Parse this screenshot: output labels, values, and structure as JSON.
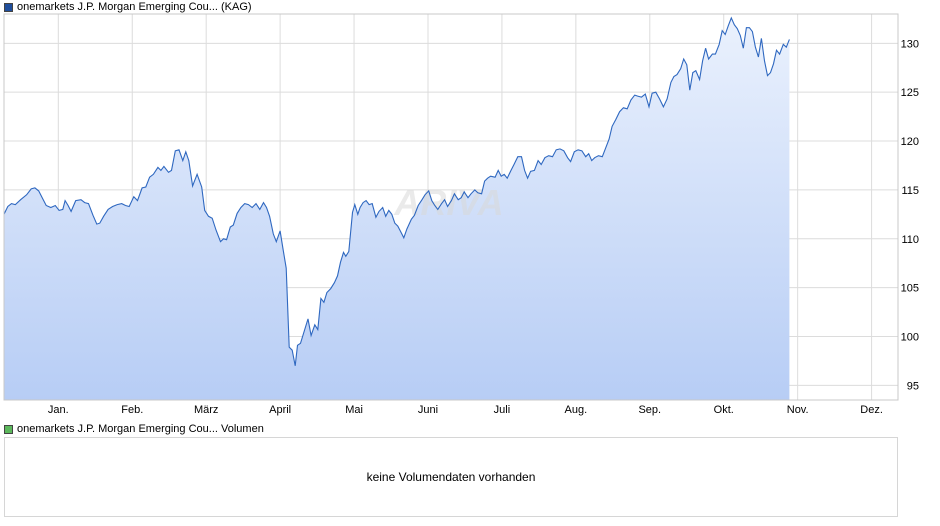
{
  "legend": {
    "main_label": "onemarkets J.P. Morgan Emerging Cou... (KAG)",
    "main_color": "#1f4e9c",
    "volume_label": "onemarkets J.P. Morgan Emerging Cou... Volumen",
    "volume_color": "#5cb85c"
  },
  "watermark": "ARIVA",
  "volume_panel": {
    "message": "keine Volumendaten vorhanden"
  },
  "chart_data": {
    "type": "area",
    "title": "",
    "xlabel": "",
    "ylabel": "",
    "line_color": "#2f68c0",
    "fill_top": "#eaf1fd",
    "fill_bottom": "#b7cdf5",
    "grid": true,
    "x_ticks": [
      {
        "label": "Jan.",
        "x": 0.72
      },
      {
        "label": "Feb.",
        "x": 1.7
      },
      {
        "label": "März",
        "x": 2.68
      },
      {
        "label": "April",
        "x": 3.66
      },
      {
        "label": "Mai",
        "x": 4.64
      },
      {
        "label": "Juni",
        "x": 5.62
      },
      {
        "label": "Juli",
        "x": 6.6
      },
      {
        "label": "Aug.",
        "x": 7.58
      },
      {
        "label": "Sep.",
        "x": 8.56
      },
      {
        "label": "Okt.",
        "x": 9.54
      },
      {
        "label": "Nov.",
        "x": 10.52
      },
      {
        "label": "Dez.",
        "x": 11.5
      }
    ],
    "xlim": [
      0,
      11.85
    ],
    "y_ticks": [
      95,
      100,
      105,
      110,
      115,
      120,
      125,
      130
    ],
    "ylim": [
      93.5,
      133
    ],
    "series": [
      {
        "values": [
          [
            0.0,
            112.5
          ],
          [
            0.05,
            113.3
          ],
          [
            0.1,
            113.6
          ],
          [
            0.15,
            113.5
          ],
          [
            0.22,
            114.0
          ],
          [
            0.3,
            114.5
          ],
          [
            0.36,
            115.1
          ],
          [
            0.41,
            115.2
          ],
          [
            0.46,
            114.9
          ],
          [
            0.5,
            114.3
          ],
          [
            0.56,
            113.4
          ],
          [
            0.62,
            113.2
          ],
          [
            0.68,
            113.4
          ],
          [
            0.73,
            112.9
          ],
          [
            0.78,
            113.0
          ],
          [
            0.81,
            113.9
          ],
          [
            0.85,
            113.4
          ],
          [
            0.89,
            112.8
          ],
          [
            0.95,
            113.9
          ],
          [
            1.02,
            114.0
          ],
          [
            1.07,
            113.7
          ],
          [
            1.12,
            113.6
          ],
          [
            1.18,
            112.4
          ],
          [
            1.23,
            111.5
          ],
          [
            1.27,
            111.6
          ],
          [
            1.32,
            112.3
          ],
          [
            1.38,
            113.0
          ],
          [
            1.44,
            113.3
          ],
          [
            1.5,
            113.5
          ],
          [
            1.56,
            113.6
          ],
          [
            1.61,
            113.4
          ],
          [
            1.66,
            113.3
          ],
          [
            1.72,
            114.3
          ],
          [
            1.77,
            113.9
          ],
          [
            1.83,
            115.2
          ],
          [
            1.88,
            115.3
          ],
          [
            1.93,
            116.3
          ],
          [
            1.98,
            116.6
          ],
          [
            2.04,
            117.3
          ],
          [
            2.08,
            117.0
          ],
          [
            2.12,
            117.4
          ],
          [
            2.18,
            116.8
          ],
          [
            2.22,
            117.0
          ],
          [
            2.27,
            119.0
          ],
          [
            2.32,
            119.1
          ],
          [
            2.37,
            118.0
          ],
          [
            2.41,
            118.9
          ],
          [
            2.45,
            118.0
          ],
          [
            2.5,
            115.4
          ],
          [
            2.56,
            116.6
          ],
          [
            2.62,
            115.3
          ],
          [
            2.66,
            112.9
          ],
          [
            2.71,
            112.3
          ],
          [
            2.76,
            112.1
          ],
          [
            2.81,
            110.9
          ],
          [
            2.87,
            109.7
          ],
          [
            2.91,
            110.0
          ],
          [
            2.95,
            109.9
          ],
          [
            3.0,
            111.2
          ],
          [
            3.04,
            111.4
          ],
          [
            3.09,
            112.6
          ],
          [
            3.14,
            113.2
          ],
          [
            3.19,
            113.6
          ],
          [
            3.24,
            113.5
          ],
          [
            3.29,
            113.2
          ],
          [
            3.34,
            113.6
          ],
          [
            3.39,
            113.0
          ],
          [
            3.44,
            113.7
          ],
          [
            3.48,
            113.2
          ],
          [
            3.52,
            112.3
          ],
          [
            3.57,
            110.5
          ],
          [
            3.61,
            109.7
          ],
          [
            3.66,
            110.8
          ],
          [
            3.7,
            108.9
          ],
          [
            3.74,
            107.0
          ],
          [
            3.78,
            98.9
          ],
          [
            3.82,
            98.6
          ],
          [
            3.86,
            97.0
          ],
          [
            3.89,
            99.1
          ],
          [
            3.93,
            99.3
          ],
          [
            3.97,
            100.3
          ],
          [
            4.03,
            101.8
          ],
          [
            4.07,
            100.1
          ],
          [
            4.12,
            101.2
          ],
          [
            4.16,
            100.7
          ],
          [
            4.2,
            103.9
          ],
          [
            4.24,
            103.5
          ],
          [
            4.28,
            104.5
          ],
          [
            4.33,
            104.9
          ],
          [
            4.38,
            105.5
          ],
          [
            4.42,
            106.2
          ],
          [
            4.46,
            107.6
          ],
          [
            4.5,
            108.6
          ],
          [
            4.53,
            108.2
          ],
          [
            4.57,
            108.7
          ],
          [
            4.62,
            112.7
          ],
          [
            4.65,
            113.5
          ],
          [
            4.69,
            112.5
          ],
          [
            4.72,
            113.2
          ],
          [
            4.76,
            113.7
          ],
          [
            4.8,
            113.9
          ],
          [
            4.84,
            113.5
          ],
          [
            4.88,
            113.6
          ],
          [
            4.93,
            112.2
          ],
          [
            4.97,
            112.8
          ],
          [
            5.02,
            113.2
          ],
          [
            5.06,
            112.3
          ],
          [
            5.1,
            112.9
          ],
          [
            5.14,
            112.5
          ],
          [
            5.18,
            111.6
          ],
          [
            5.22,
            111.3
          ],
          [
            5.26,
            110.7
          ],
          [
            5.3,
            110.1
          ],
          [
            5.34,
            111.0
          ],
          [
            5.4,
            112.0
          ],
          [
            5.44,
            112.4
          ],
          [
            5.49,
            113.4
          ],
          [
            5.54,
            114.0
          ],
          [
            5.58,
            114.5
          ],
          [
            5.63,
            114.9
          ],
          [
            5.67,
            113.9
          ],
          [
            5.71,
            113.4
          ],
          [
            5.75,
            113.0
          ],
          [
            5.8,
            113.6
          ],
          [
            5.84,
            114.0
          ],
          [
            5.88,
            113.3
          ],
          [
            5.93,
            113.9
          ],
          [
            5.97,
            114.6
          ],
          [
            6.02,
            114.0
          ],
          [
            6.06,
            114.2
          ],
          [
            6.1,
            114.8
          ],
          [
            6.15,
            114.2
          ],
          [
            6.19,
            114.6
          ],
          [
            6.24,
            115.0
          ],
          [
            6.28,
            114.7
          ],
          [
            6.33,
            114.6
          ],
          [
            6.37,
            115.9
          ],
          [
            6.41,
            116.2
          ],
          [
            6.45,
            116.4
          ],
          [
            6.51,
            116.3
          ],
          [
            6.55,
            117.0
          ],
          [
            6.59,
            116.4
          ],
          [
            6.63,
            116.6
          ],
          [
            6.67,
            116.2
          ],
          [
            6.72,
            117.0
          ],
          [
            6.76,
            117.6
          ],
          [
            6.81,
            118.4
          ],
          [
            6.86,
            118.4
          ],
          [
            6.9,
            117.0
          ],
          [
            6.94,
            116.2
          ],
          [
            6.98,
            116.9
          ],
          [
            7.03,
            117.0
          ],
          [
            7.08,
            118.0
          ],
          [
            7.12,
            117.6
          ],
          [
            7.17,
            118.3
          ],
          [
            7.22,
            118.5
          ],
          [
            7.27,
            118.4
          ],
          [
            7.32,
            119.1
          ],
          [
            7.37,
            119.2
          ],
          [
            7.42,
            119.0
          ],
          [
            7.47,
            118.3
          ],
          [
            7.51,
            117.9
          ],
          [
            7.56,
            118.9
          ],
          [
            7.61,
            119.1
          ],
          [
            7.66,
            119.0
          ],
          [
            7.71,
            118.4
          ],
          [
            7.75,
            118.7
          ],
          [
            7.79,
            118.0
          ],
          [
            7.83,
            118.3
          ],
          [
            7.88,
            118.5
          ],
          [
            7.93,
            118.4
          ],
          [
            7.97,
            119.2
          ],
          [
            8.02,
            120.2
          ],
          [
            8.06,
            121.5
          ],
          [
            8.11,
            122.2
          ],
          [
            8.16,
            123.0
          ],
          [
            8.21,
            123.4
          ],
          [
            8.26,
            123.3
          ],
          [
            8.31,
            124.2
          ],
          [
            8.36,
            124.7
          ],
          [
            8.4,
            124.6
          ],
          [
            8.45,
            124.5
          ],
          [
            8.5,
            124.8
          ],
          [
            8.55,
            123.5
          ],
          [
            8.59,
            124.9
          ],
          [
            8.64,
            125.0
          ],
          [
            8.69,
            124.3
          ],
          [
            8.74,
            123.5
          ],
          [
            8.79,
            124.3
          ],
          [
            8.84,
            126.0
          ],
          [
            8.88,
            126.6
          ],
          [
            8.92,
            126.8
          ],
          [
            8.97,
            127.4
          ],
          [
            9.01,
            128.4
          ],
          [
            9.05,
            127.8
          ],
          [
            9.09,
            125.2
          ],
          [
            9.13,
            127.0
          ],
          [
            9.17,
            127.2
          ],
          [
            9.22,
            126.3
          ],
          [
            9.26,
            128.2
          ],
          [
            9.3,
            129.5
          ],
          [
            9.34,
            128.4
          ],
          [
            9.39,
            128.9
          ],
          [
            9.43,
            128.9
          ],
          [
            9.48,
            129.9
          ],
          [
            9.52,
            131.3
          ],
          [
            9.56,
            130.9
          ],
          [
            9.6,
            131.8
          ],
          [
            9.64,
            132.6
          ],
          [
            9.68,
            131.9
          ],
          [
            9.72,
            131.5
          ],
          [
            9.76,
            130.8
          ],
          [
            9.8,
            129.5
          ],
          [
            9.84,
            131.6
          ],
          [
            9.88,
            131.6
          ],
          [
            9.92,
            131.2
          ],
          [
            9.96,
            129.6
          ],
          [
            10.0,
            128.6
          ],
          [
            10.04,
            130.5
          ],
          [
            10.08,
            128.2
          ],
          [
            10.12,
            126.7
          ],
          [
            10.16,
            127.0
          ],
          [
            10.2,
            127.9
          ],
          [
            10.24,
            129.3
          ],
          [
            10.28,
            128.9
          ],
          [
            10.33,
            129.9
          ],
          [
            10.37,
            129.6
          ],
          [
            10.41,
            130.4
          ]
        ]
      }
    ]
  }
}
